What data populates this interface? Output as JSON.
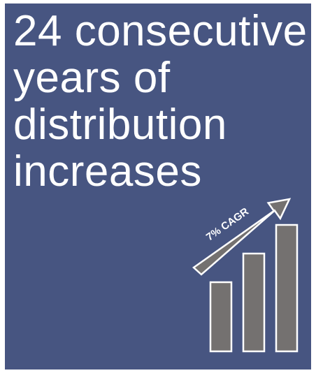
{
  "headline": {
    "line1": "24 consecutive",
    "line2": "years of",
    "line3": "distribution",
    "line4": "increases"
  },
  "growth_arrow": {
    "label": "7% CAGR"
  },
  "icon": {
    "name": "growth-bar-chart-icon",
    "bar_levels": [
      0.48,
      0.68,
      0.88
    ],
    "colors": {
      "card_background": "#475581",
      "bar_fill": "#747170",
      "outline": "#ffffff"
    }
  }
}
